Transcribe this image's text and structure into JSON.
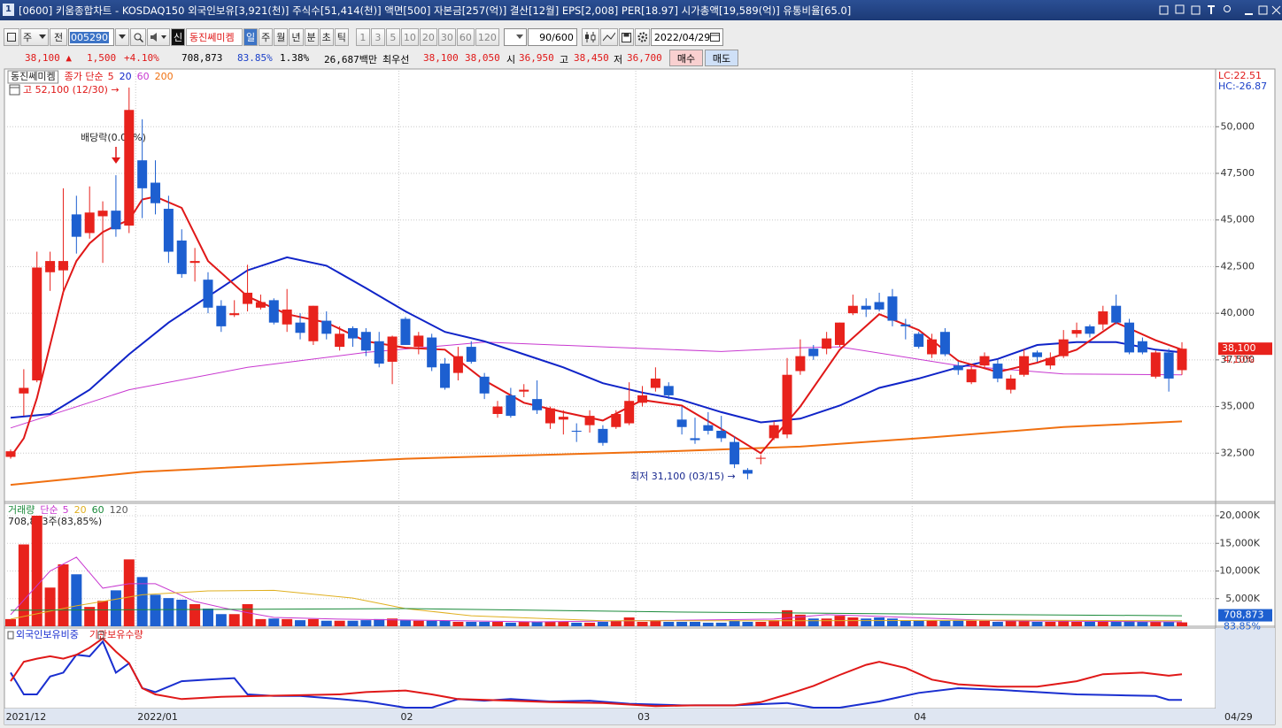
{
  "title_bar": {
    "window_number": "1",
    "text": "[0600] 키움종합차트 - KOSDAQ150 외국인보유[3,921(천)] 주식수[51,414(천)] 액면[500] 자본금[257(억)] 결산[12월] EPS[2,008] PER[18.97] 시가총액[19,589(억)] 유통비율[65.0]"
  },
  "toolbar": {
    "market": "주",
    "scope": "전",
    "code": "005290",
    "badge": "신",
    "name": "동진쎄미켐",
    "periods": [
      "일",
      "주",
      "월",
      "년",
      "분",
      "초",
      "틱"
    ],
    "intervals": [
      "1",
      "3",
      "5",
      "10",
      "20",
      "30",
      "60",
      "120"
    ],
    "count": "90/600",
    "date": "2022/04/29"
  },
  "info_row": {
    "price": "38,100 ▲",
    "change": "1,500",
    "change_pct": "+4.10%",
    "volume": "708,873",
    "volume_ratio": "83.85%",
    "turnover": "1.38%",
    "amount": "26,687백만",
    "best_label": "최우선",
    "best_ask": "38,100",
    "best_bid": "38,050",
    "open_label": "시",
    "open": "36,950",
    "high_label": "고",
    "high": "38,450",
    "low_label": "저",
    "low": "36,700",
    "buy": "매수",
    "sell": "매도"
  },
  "price_panel": {
    "name": "동진쎄미켐",
    "ma_label": "종가 단순",
    "legend_items": [
      {
        "label": "5",
        "color": "#e01818"
      },
      {
        "label": "20",
        "color": "#1024c8"
      },
      {
        "label": "60",
        "color": "#c838d0"
      },
      {
        "label": "200",
        "color": "#f07010"
      }
    ],
    "lc": "LC:22.51",
    "hc": "HC:-26.87",
    "last_price_label": "38,100",
    "last_change_label": "4.10%",
    "up_color": "#e8221c",
    "down_color": "#1d5fd0",
    "ylim": [
      30000,
      53000
    ],
    "yticks": [
      {
        "value": 32500,
        "label": "32,500"
      },
      {
        "value": 35000,
        "label": "35,000"
      },
      {
        "value": 37500,
        "label": "37,500"
      },
      {
        "value": 40000,
        "label": "40,000"
      },
      {
        "value": 42500,
        "label": "42,500"
      },
      {
        "value": 45000,
        "label": "45,000"
      },
      {
        "value": 47500,
        "label": "47,500"
      },
      {
        "value": 50000,
        "label": "50,000"
      }
    ],
    "candles": {
      "open": [
        32300,
        35700,
        36400,
        42200,
        42300,
        45300,
        44300,
        45200,
        45500,
        44700,
        48200,
        47000,
        45600,
        43900,
        42700,
        41800,
        40400,
        39900,
        40500,
        40300,
        40700,
        39400,
        39500,
        38500,
        39600,
        38200,
        39200,
        39000,
        38500,
        37400,
        39700,
        38200,
        38700,
        37300,
        36800,
        38200,
        36600,
        34600,
        35600,
        35800,
        35400,
        34100,
        34300,
        33700,
        34000,
        33800,
        33900,
        34100,
        35200,
        36000,
        36100,
        34300,
        33300,
        34000,
        33700,
        33100,
        31600,
        32200,
        33300,
        33500,
        36900,
        38100,
        38100,
        38300,
        40000,
        40400,
        40600,
        40900,
        39400,
        38900,
        37800,
        39000,
        37200,
        36300,
        37200,
        37300,
        35900,
        36700,
        37900,
        37200,
        37700,
        38900,
        39300,
        39400,
        40400,
        39500,
        38500,
        36600,
        37900,
        36950
      ],
      "high": [
        32700,
        37000,
        43300,
        43300,
        46700,
        46300,
        46800,
        46000,
        47400,
        52100,
        50400,
        48200,
        46300,
        44500,
        43500,
        42200,
        40700,
        40700,
        42600,
        41000,
        40800,
        41300,
        40000,
        40400,
        40100,
        39300,
        39300,
        39200,
        39000,
        38800,
        39800,
        39000,
        38900,
        37600,
        38200,
        38500,
        36800,
        35300,
        36000,
        36200,
        36400,
        35000,
        34800,
        34100,
        34800,
        34000,
        34800,
        36300,
        36100,
        37100,
        36300,
        35000,
        34400,
        34700,
        34500,
        33400,
        31700,
        32400,
        34200,
        37600,
        38600,
        38300,
        39000,
        39500,
        41000,
        40800,
        41100,
        41300,
        39700,
        39000,
        38900,
        39200,
        37400,
        37200,
        37900,
        37500,
        36700,
        38100,
        38000,
        37900,
        39100,
        39500,
        39400,
        40400,
        41000,
        39700,
        38700,
        38000,
        38100,
        38450
      ],
      "low": [
        32200,
        34500,
        36300,
        41200,
        41000,
        43200,
        44000,
        42700,
        44100,
        44300,
        45100,
        45300,
        42700,
        41900,
        41700,
        40000,
        39000,
        39800,
        40100,
        40200,
        39400,
        39000,
        38600,
        38300,
        38600,
        38000,
        38200,
        37700,
        37100,
        36200,
        38300,
        37800,
        36900,
        35900,
        36400,
        37300,
        35400,
        34400,
        34400,
        35500,
        34600,
        33800,
        33500,
        33100,
        33600,
        32900,
        33800,
        34000,
        35000,
        35800,
        35400,
        33500,
        33000,
        33500,
        33100,
        31700,
        31100,
        31900,
        33200,
        33300,
        36700,
        37500,
        37800,
        38200,
        39900,
        39800,
        40100,
        39300,
        38600,
        38100,
        37600,
        37700,
        36700,
        36200,
        37100,
        36300,
        35700,
        36600,
        37400,
        37000,
        37600,
        38700,
        38700,
        39100,
        39400,
        37800,
        37800,
        36500,
        35800,
        36700
      ],
      "close": [
        32600,
        36000,
        42450,
        42800,
        42800,
        44100,
        45400,
        45500,
        44500,
        50900,
        46700,
        45900,
        43300,
        42100,
        42800,
        40300,
        39300,
        40000,
        41100,
        40600,
        39500,
        40200,
        38950,
        40400,
        38900,
        38900,
        38650,
        38000,
        37300,
        38750,
        38300,
        38800,
        37100,
        36000,
        37700,
        37400,
        35700,
        35000,
        34500,
        35900,
        34800,
        34900,
        34450,
        33650,
        34500,
        33050,
        34600,
        35300,
        35600,
        36500,
        35600,
        33900,
        33200,
        33700,
        33300,
        31900,
        31400,
        32250,
        34000,
        36700,
        37700,
        37700,
        38650,
        39500,
        40400,
        40200,
        40200,
        39600,
        39300,
        38200,
        38600,
        37800,
        36950,
        37000,
        37700,
        36500,
        36500,
        37700,
        37650,
        37600,
        38600,
        39100,
        38900,
        40100,
        39500,
        37900,
        37900,
        37900,
        36500,
        38100
      ]
    },
    "ma_lines": [
      {
        "color": "#e01818",
        "x": [
          0,
          1,
          2,
          3,
          4,
          5,
          6,
          7,
          8,
          9,
          10,
          11,
          13,
          15,
          18,
          21,
          24,
          27,
          30,
          33,
          36,
          39,
          42,
          45,
          48,
          51,
          54,
          57,
          60,
          63,
          66,
          69,
          72,
          75,
          78,
          81,
          84,
          87,
          89
        ],
        "values": [
          32300,
          33300,
          35450,
          38300,
          41150,
          42800,
          43750,
          44350,
          44700,
          45000,
          46100,
          46250,
          45650,
          42800,
          40900,
          39950,
          39500,
          38500,
          38150,
          38050,
          36400,
          35200,
          34700,
          34250,
          35350,
          35050,
          33800,
          32500,
          35000,
          38050,
          39950,
          39100,
          37450,
          36850,
          37350,
          38050,
          39500,
          38550,
          38050
        ]
      },
      {
        "color": "#1024c8",
        "x": [
          0,
          3,
          6,
          9,
          12,
          15,
          18,
          21,
          24,
          27,
          30,
          33,
          36,
          39,
          42,
          45,
          48,
          51,
          54,
          57,
          60,
          63,
          66,
          69,
          72,
          75,
          78,
          81,
          84,
          87,
          89
        ],
        "values": [
          34400,
          34600,
          35900,
          37800,
          39500,
          40900,
          42300,
          43000,
          42550,
          41350,
          40100,
          39000,
          38500,
          37800,
          37100,
          36250,
          35750,
          35350,
          34700,
          34150,
          34350,
          35050,
          36000,
          36500,
          37100,
          37550,
          38300,
          38450,
          38450,
          38050,
          37900
        ]
      },
      {
        "color": "#c838d0",
        "x": [
          0,
          9,
          18,
          27,
          36,
          45,
          54,
          60,
          63,
          72,
          80,
          89
        ],
        "values": [
          33850,
          35900,
          37100,
          37900,
          38450,
          38200,
          37950,
          38150,
          38200,
          37200,
          36750,
          36700
        ]
      },
      {
        "color": "#f07010",
        "x": [
          0,
          10,
          30,
          50,
          60,
          70,
          80,
          89
        ],
        "values": [
          30800,
          31500,
          32200,
          32600,
          32850,
          33350,
          33900,
          34200
        ]
      }
    ],
    "annotations": [
      "고 52,100 (12/30) →",
      "배당락(0.00%)",
      "최저 31,100 (03/15) →"
    ]
  },
  "volume_panel": {
    "name": "거래량",
    "ma_label": "단순",
    "legend_items": [
      {
        "label": "5",
        "color": "#c838d0"
      },
      {
        "label": "20",
        "color": "#e0b020"
      },
      {
        "label": "60",
        "color": "#1a8a3a"
      },
      {
        "label": "120",
        "color": "#555555"
      }
    ],
    "summary": "708,873주(83,85%)",
    "last_label": "708,873",
    "last_ratio": "83.85%",
    "ylim": [
      0,
      22000
    ],
    "yticks": [
      {
        "value": 5000,
        "label": "5,000K"
      },
      {
        "value": 10000,
        "label": "10,000K"
      },
      {
        "value": 15000,
        "label": "15,000K"
      },
      {
        "value": 20000,
        "label": "20,000K"
      }
    ],
    "values": [
      1300,
      14800,
      20000,
      7000,
      11200,
      9400,
      3500,
      4600,
      6500,
      12100,
      8900,
      5700,
      5100,
      4800,
      4000,
      3200,
      2200,
      2200,
      4000,
      1300,
      1400,
      1300,
      1100,
      1300,
      1000,
      1000,
      1000,
      1100,
      1300,
      1400,
      1100,
      1000,
      1000,
      1000,
      800,
      800,
      800,
      800,
      650,
      800,
      800,
      800,
      800,
      650,
      650,
      800,
      1000,
      1600,
      800,
      1000,
      800,
      800,
      800,
      650,
      650,
      1000,
      800,
      800,
      1100,
      2900,
      2100,
      1400,
      1400,
      1900,
      1600,
      1400,
      1600,
      1400,
      1000,
      1000,
      1100,
      1000,
      1000,
      1000,
      1000,
      800,
      1000,
      1000,
      800,
      800,
      1000,
      800,
      800,
      1100,
      800,
      1000,
      800,
      800,
      800,
      708.873
    ],
    "ma_lines": [
      {
        "color": "#c838d0",
        "x": [
          0,
          3,
          5,
          7,
          9,
          11,
          14,
          17,
          20,
          25,
          40,
          58,
          62,
          66,
          75,
          89
        ],
        "values": [
          2100,
          10000,
          12500,
          6900,
          7700,
          7700,
          4500,
          2900,
          1600,
          1300,
          800,
          1300,
          2100,
          1800,
          1000,
          800
        ]
      },
      {
        "color": "#e0b020",
        "x": [
          0,
          5,
          10,
          15,
          20,
          26,
          30,
          35,
          45,
          60,
          75,
          89
        ],
        "values": [
          1300,
          3700,
          5700,
          6400,
          6500,
          5100,
          3200,
          1900,
          1000,
          1000,
          1100,
          1000
        ]
      },
      {
        "color": "#1a8a3a",
        "x": [
          0,
          30,
          50,
          70,
          89
        ],
        "values": [
          2900,
          3200,
          2600,
          2200,
          1900
        ]
      }
    ]
  },
  "ownership_panel": {
    "ylim": [
      0,
      100
    ],
    "series": [
      {
        "name": "외국인보유비중",
        "color": "#1a2fd0",
        "x": [
          0,
          1,
          2,
          3,
          4,
          5,
          6,
          7,
          8,
          9,
          10,
          11,
          13,
          15,
          17,
          18,
          20,
          22,
          25,
          27,
          30,
          32,
          34,
          36,
          38,
          41,
          44,
          47,
          51,
          55,
          59,
          61,
          63,
          66,
          69,
          72,
          75,
          78,
          81,
          84,
          87,
          88,
          89
        ],
        "values": [
          45,
          17,
          17,
          40,
          45,
          68,
          66,
          85,
          45,
          57,
          25,
          20,
          34,
          36,
          38,
          17,
          15,
          15,
          11,
          8,
          0,
          0,
          11,
          9,
          11,
          8,
          9,
          5,
          3,
          3,
          6,
          0,
          0,
          8,
          19,
          25,
          23,
          20,
          17,
          16,
          15,
          10,
          10
        ]
      },
      {
        "name": "기관보유수량",
        "color": "#e01818",
        "x": [
          0,
          1,
          2,
          3,
          4,
          5,
          6,
          7,
          8,
          9,
          10,
          11,
          13,
          16,
          19,
          22,
          25,
          27,
          30,
          32,
          34,
          38,
          41,
          45,
          49,
          52,
          55,
          57,
          59,
          61,
          63,
          65,
          66,
          68,
          70,
          72,
          75,
          78,
          81,
          83,
          86,
          88,
          89
        ],
        "values": [
          34,
          59,
          63,
          66,
          63,
          68,
          77,
          89,
          72,
          57,
          25,
          17,
          11,
          14,
          15,
          16,
          17,
          20,
          22,
          17,
          11,
          9,
          7,
          6,
          2,
          3,
          3,
          7,
          17,
          28,
          42,
          55,
          59,
          51,
          36,
          30,
          27,
          27,
          34,
          43,
          45,
          41,
          43
        ]
      }
    ]
  },
  "x_axis": {
    "labels": [
      {
        "index": 0,
        "label": "2021/12"
      },
      {
        "index": 10,
        "label": "2022/01"
      },
      {
        "index": 30,
        "label": "02"
      },
      {
        "index": 48,
        "label": "03"
      },
      {
        "index": 69,
        "label": "04"
      }
    ],
    "last_date": "04/29"
  }
}
